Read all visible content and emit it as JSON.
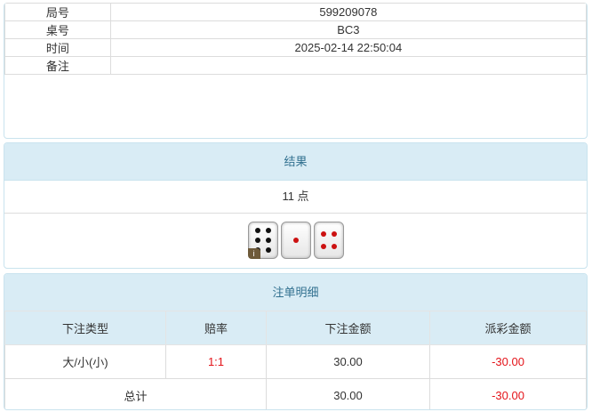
{
  "info": {
    "rows": [
      {
        "label": "局号",
        "value": "599209078"
      },
      {
        "label": "桌号",
        "value": "BC3"
      },
      {
        "label": "时间",
        "value": "2025-02-14 22:50:04"
      },
      {
        "label": "备注",
        "value": ""
      }
    ]
  },
  "result": {
    "title": "结果",
    "points": "11 点",
    "dice": [
      6,
      1,
      4
    ],
    "dice_pip_colors": {
      "6": "#111111",
      "1": "#cc1111",
      "4": "#cc1111"
    },
    "badge": "i"
  },
  "bets": {
    "title": "注单明细",
    "columns": [
      "下注类型",
      "赔率",
      "下注金额",
      "派彩金额"
    ],
    "rows": [
      {
        "type": "大/小(小)",
        "odds": "1:1",
        "amount": "30.00",
        "payout": "-30.00"
      }
    ],
    "total": {
      "label": "总计",
      "amount": "30.00",
      "payout": "-30.00"
    },
    "accent_red": "#e4141a"
  }
}
